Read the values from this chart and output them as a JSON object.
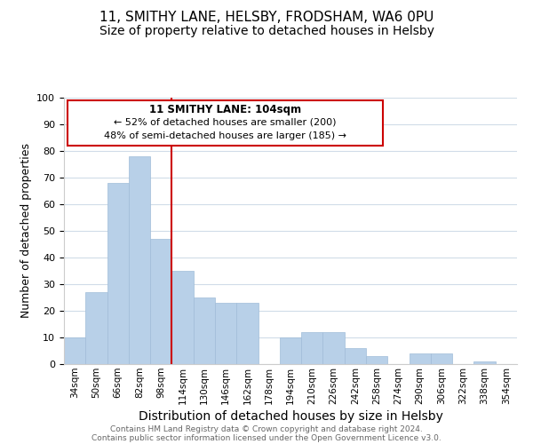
{
  "title": "11, SMITHY LANE, HELSBY, FRODSHAM, WA6 0PU",
  "subtitle": "Size of property relative to detached houses in Helsby",
  "xlabel": "Distribution of detached houses by size in Helsby",
  "ylabel": "Number of detached properties",
  "bins": [
    "34sqm",
    "50sqm",
    "66sqm",
    "82sqm",
    "98sqm",
    "114sqm",
    "130sqm",
    "146sqm",
    "162sqm",
    "178sqm",
    "194sqm",
    "210sqm",
    "226sqm",
    "242sqm",
    "258sqm",
    "274sqm",
    "290sqm",
    "306sqm",
    "322sqm",
    "338sqm",
    "354sqm"
  ],
  "values": [
    10,
    27,
    68,
    78,
    47,
    35,
    25,
    23,
    23,
    0,
    10,
    12,
    12,
    6,
    3,
    0,
    4,
    4,
    0,
    1,
    0
  ],
  "bar_color": "#b8d0e8",
  "bar_edge_color": "#a0bcd8",
  "vline_color": "#cc0000",
  "annotation_box_color": "#cc0000",
  "annotation_title": "11 SMITHY LANE: 104sqm",
  "annotation_line1": "← 52% of detached houses are smaller (200)",
  "annotation_line2": "48% of semi-detached houses are larger (185) →",
  "ylim": [
    0,
    100
  ],
  "yticks": [
    0,
    10,
    20,
    30,
    40,
    50,
    60,
    70,
    80,
    90,
    100
  ],
  "bg_color": "#ffffff",
  "grid_color": "#d0dce8",
  "footer_line1": "Contains HM Land Registry data © Crown copyright and database right 2024.",
  "footer_line2": "Contains public sector information licensed under the Open Government Licence v3.0.",
  "title_fontsize": 11,
  "subtitle_fontsize": 10,
  "xlabel_fontsize": 10,
  "ylabel_fontsize": 9
}
